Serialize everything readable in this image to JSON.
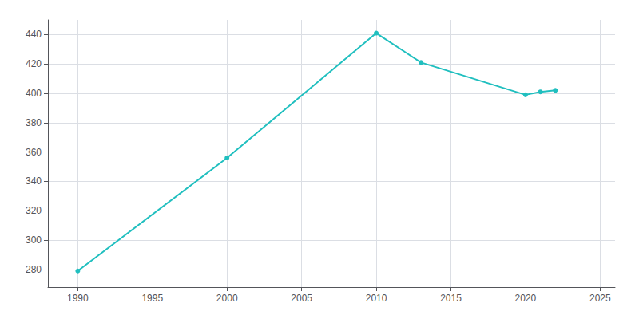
{
  "chart_data": {
    "type": "line",
    "x": [
      1990,
      2000,
      2010,
      2013,
      2020,
      2021,
      2022
    ],
    "values": [
      279,
      356,
      441,
      421,
      399,
      401,
      402
    ],
    "color": "#20BFBF",
    "marker": "circle",
    "xlim": [
      1988,
      2026
    ],
    "ylim": [
      268,
      450
    ],
    "xticks": [
      1990,
      1995,
      2000,
      2005,
      2010,
      2015,
      2020,
      2025
    ],
    "yticks": [
      280,
      300,
      320,
      340,
      360,
      380,
      400,
      420,
      440
    ],
    "grid": true
  }
}
